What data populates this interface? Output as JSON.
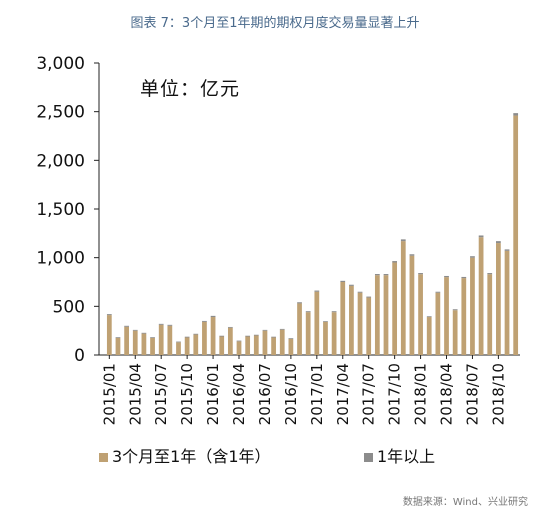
{
  "colors": {
    "primary": "#bfa173",
    "secondary": "#8c8c8c",
    "title": "#4a6a8c"
  },
  "chart_data": {
    "type": "bar",
    "title": "图表 7：3个月至1年期的期权月度交易量显著上升",
    "unit_label": "单位：亿元",
    "source": "数据来源：Wind、兴业研究",
    "ylim": [
      0,
      3000
    ],
    "yticks": [
      "0",
      "500",
      "1,000",
      "1,500",
      "2,000",
      "2,500",
      "3,000"
    ],
    "xticks": [
      "2015/01",
      "2015/04",
      "2015/07",
      "2015/10",
      "2016/01",
      "2016/04",
      "2016/07",
      "2016/10",
      "2017/01",
      "2017/04",
      "2017/07",
      "2017/10",
      "2018/01",
      "2018/04",
      "2018/07",
      "2018/10"
    ],
    "stacked": true,
    "categories": [
      "2015/01",
      "2015/02",
      "2015/03",
      "2015/04",
      "2015/05",
      "2015/06",
      "2015/07",
      "2015/08",
      "2015/09",
      "2015/10",
      "2015/11",
      "2015/12",
      "2016/01",
      "2016/02",
      "2016/03",
      "2016/04",
      "2016/05",
      "2016/06",
      "2016/07",
      "2016/08",
      "2016/09",
      "2016/10",
      "2016/11",
      "2016/12",
      "2017/01",
      "2017/02",
      "2017/03",
      "2017/04",
      "2017/05",
      "2017/06",
      "2017/07",
      "2017/08",
      "2017/09",
      "2017/10",
      "2017/11",
      "2017/12",
      "2018/01",
      "2018/02",
      "2018/03",
      "2018/04",
      "2018/05",
      "2018/06",
      "2018/07",
      "2018/08",
      "2018/09",
      "2018/10",
      "2018/11",
      "2018/12"
    ],
    "series": [
      {
        "name": "3个月至1年（含1年）",
        "values": [
          410,
          175,
          290,
          250,
          220,
          175,
          310,
          300,
          130,
          180,
          210,
          340,
          390,
          190,
          280,
          140,
          190,
          200,
          250,
          180,
          260,
          165,
          530,
          440,
          650,
          340,
          440,
          750,
          710,
          640,
          590,
          820,
          820,
          950,
          1170,
          1020,
          830,
          390,
          640,
          800,
          460,
          790,
          1000,
          1210,
          830,
          1150,
          1070,
          2460
        ]
      },
      {
        "name": "1年以上",
        "values": [
          10,
          8,
          10,
          8,
          8,
          8,
          10,
          10,
          8,
          8,
          8,
          10,
          12,
          8,
          8,
          8,
          8,
          8,
          8,
          8,
          8,
          8,
          12,
          10,
          12,
          8,
          10,
          12,
          12,
          10,
          10,
          12,
          12,
          15,
          18,
          15,
          12,
          8,
          10,
          12,
          10,
          12,
          15,
          18,
          12,
          20,
          15,
          25
        ]
      }
    ],
    "legend_position": "bottom"
  }
}
